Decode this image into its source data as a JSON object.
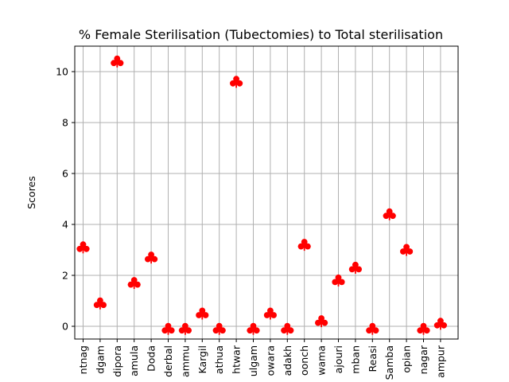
{
  "chart_data": {
    "type": "scatter",
    "title": "% Female Sterilisation (Tubectomies) to Total sterilisation",
    "xlabel": "",
    "ylabel": "Scores",
    "ylim": [
      -0.5,
      11.0
    ],
    "yticks": [
      0,
      2,
      4,
      6,
      8,
      10
    ],
    "grid": true,
    "marker": "club",
    "marker_color": "#ff0000",
    "categories": [
      "ntnag",
      "dgam",
      "dipora",
      "amula",
      "Doda",
      "derbal",
      "ammu",
      "Kargil",
      "athua",
      "htwar",
      "ulgam",
      "owara",
      "adakh",
      "oonch",
      "wama",
      "ajouri",
      "mban",
      "Reasi",
      "Samba",
      "opian",
      "nagar",
      "ampur"
    ],
    "values": [
      3.1,
      0.9,
      10.4,
      1.7,
      2.7,
      -0.1,
      -0.1,
      0.5,
      -0.1,
      9.6,
      -0.1,
      0.5,
      -0.1,
      3.2,
      0.2,
      1.8,
      2.3,
      -0.1,
      4.4,
      3.0,
      -0.1,
      0.1
    ]
  }
}
